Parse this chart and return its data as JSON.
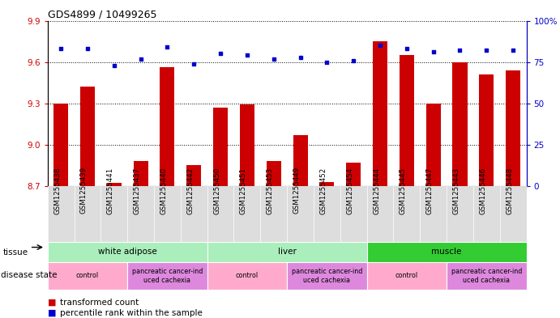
{
  "title": "GDS4899 / 10499265",
  "samples": [
    "GSM1255438",
    "GSM1255439",
    "GSM1255441",
    "GSM1255437",
    "GSM1255440",
    "GSM1255442",
    "GSM1255450",
    "GSM1255451",
    "GSM1255453",
    "GSM1255449",
    "GSM1255452",
    "GSM1255454",
    "GSM1255444",
    "GSM1255445",
    "GSM1255447",
    "GSM1255443",
    "GSM1255446",
    "GSM1255448"
  ],
  "red_values": [
    9.3,
    9.42,
    8.72,
    8.88,
    9.56,
    8.85,
    9.27,
    9.29,
    8.88,
    9.07,
    8.73,
    8.87,
    9.75,
    9.65,
    9.3,
    9.6,
    9.51,
    9.54
  ],
  "blue_values": [
    83,
    83,
    73,
    77,
    84,
    74,
    80,
    79,
    77,
    78,
    75,
    76,
    85,
    83,
    81,
    82,
    82,
    82
  ],
  "ylim_left": [
    8.7,
    9.9
  ],
  "ylim_right": [
    0,
    100
  ],
  "yticks_left": [
    8.7,
    9.0,
    9.3,
    9.6,
    9.9
  ],
  "yticks_right": [
    0,
    25,
    50,
    75,
    100
  ],
  "bar_color": "#CC0000",
  "dot_color": "#0000CC",
  "tissue_groups": [
    {
      "label": "white adipose",
      "start": 0,
      "end": 6,
      "color": "#AAEEBB"
    },
    {
      "label": "liver",
      "start": 6,
      "end": 12,
      "color": "#AAEEBB"
    },
    {
      "label": "muscle",
      "start": 12,
      "end": 18,
      "color": "#33CC33"
    }
  ],
  "disease_groups": [
    {
      "label": "control",
      "start": 0,
      "end": 3,
      "color": "#FFAACC"
    },
    {
      "label": "pancreatic cancer-ind\nuced cachexia",
      "start": 3,
      "end": 6,
      "color": "#DD88DD"
    },
    {
      "label": "control",
      "start": 6,
      "end": 9,
      "color": "#FFAACC"
    },
    {
      "label": "pancreatic cancer-ind\nuced cachexia",
      "start": 9,
      "end": 12,
      "color": "#DD88DD"
    },
    {
      "label": "control",
      "start": 12,
      "end": 15,
      "color": "#FFAACC"
    },
    {
      "label": "pancreatic cancer-ind\nuced cachexia",
      "start": 15,
      "end": 18,
      "color": "#DD88DD"
    }
  ],
  "tick_color_left": "#CC0000",
  "tick_color_right": "#0000CC",
  "bar_width": 0.55
}
